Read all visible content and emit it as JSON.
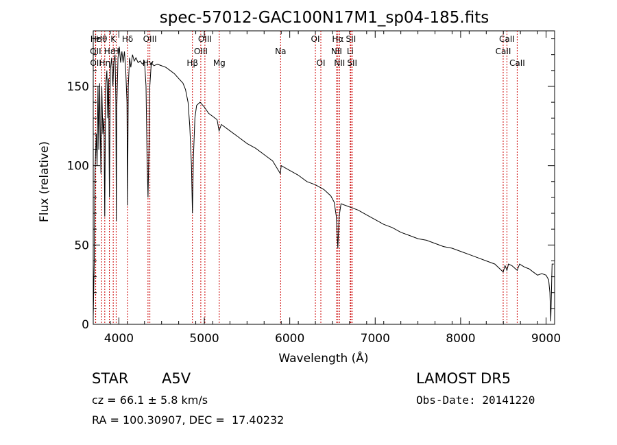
{
  "chart_data": {
    "type": "line",
    "title": "spec-57012-GAC100N17M1_sp04-185.fits",
    "xlabel": "Wavelength (Å)",
    "ylabel": "Flux (relative)",
    "xlim": [
      3700,
      9100
    ],
    "ylim": [
      0,
      185
    ],
    "x_ticks": [
      4000,
      5000,
      6000,
      7000,
      8000,
      9000
    ],
    "y_ticks": [
      0,
      50,
      100,
      150
    ],
    "grid": false,
    "line_color": "#000000",
    "marker_color": "#cc0000",
    "series": [
      {
        "points": [
          [
            3700,
            5
          ],
          [
            3712,
            40
          ],
          [
            3720,
            95
          ],
          [
            3735,
            120
          ],
          [
            3745,
            100
          ],
          [
            3755,
            150
          ],
          [
            3765,
            110
          ],
          [
            3775,
            152
          ],
          [
            3790,
            95
          ],
          [
            3800,
            150
          ],
          [
            3812,
            120
          ],
          [
            3825,
            130
          ],
          [
            3835,
            68
          ],
          [
            3845,
            150
          ],
          [
            3860,
            160
          ],
          [
            3870,
            130
          ],
          [
            3880,
            155
          ],
          [
            3889,
            80
          ],
          [
            3900,
            160
          ],
          [
            3915,
            168
          ],
          [
            3930,
            150
          ],
          [
            3940,
            165
          ],
          [
            3955,
            170
          ],
          [
            3965,
            140
          ],
          [
            3970,
            65
          ],
          [
            3975,
            135
          ],
          [
            3990,
            168
          ],
          [
            4005,
            175
          ],
          [
            4020,
            165
          ],
          [
            4035,
            172
          ],
          [
            4050,
            165
          ],
          [
            4065,
            172
          ],
          [
            4080,
            160
          ],
          [
            4095,
            140
          ],
          [
            4102,
            75
          ],
          [
            4110,
            150
          ],
          [
            4125,
            168
          ],
          [
            4140,
            162
          ],
          [
            4160,
            170
          ],
          [
            4180,
            166
          ],
          [
            4200,
            168
          ],
          [
            4225,
            165
          ],
          [
            4250,
            166
          ],
          [
            4275,
            164
          ],
          [
            4300,
            166
          ],
          [
            4318,
            150
          ],
          [
            4330,
            105
          ],
          [
            4341,
            80
          ],
          [
            4352,
            110
          ],
          [
            4362,
            150
          ],
          [
            4380,
            165
          ],
          [
            4410,
            163
          ],
          [
            4450,
            164
          ],
          [
            4500,
            163
          ],
          [
            4550,
            162
          ],
          [
            4600,
            160
          ],
          [
            4650,
            158
          ],
          [
            4700,
            155
          ],
          [
            4750,
            152
          ],
          [
            4780,
            148
          ],
          [
            4810,
            140
          ],
          [
            4830,
            125
          ],
          [
            4850,
            100
          ],
          [
            4861,
            70
          ],
          [
            4872,
            105
          ],
          [
            4890,
            130
          ],
          [
            4910,
            138
          ],
          [
            4950,
            140
          ],
          [
            5000,
            137
          ],
          [
            5050,
            133
          ],
          [
            5100,
            131
          ],
          [
            5150,
            129
          ],
          [
            5172,
            122
          ],
          [
            5200,
            126
          ],
          [
            5300,
            122
          ],
          [
            5400,
            118
          ],
          [
            5500,
            114
          ],
          [
            5600,
            111
          ],
          [
            5700,
            107
          ],
          [
            5800,
            103
          ],
          [
            5890,
            95
          ],
          [
            5900,
            100
          ],
          [
            6000,
            97
          ],
          [
            6100,
            94
          ],
          [
            6200,
            90
          ],
          [
            6300,
            88
          ],
          [
            6400,
            85
          ],
          [
            6480,
            81
          ],
          [
            6520,
            77
          ],
          [
            6545,
            68
          ],
          [
            6563,
            48
          ],
          [
            6578,
            68
          ],
          [
            6600,
            76
          ],
          [
            6700,
            74
          ],
          [
            6800,
            72
          ],
          [
            6900,
            69
          ],
          [
            7000,
            66
          ],
          [
            7100,
            63
          ],
          [
            7200,
            61
          ],
          [
            7300,
            58
          ],
          [
            7400,
            56
          ],
          [
            7500,
            54
          ],
          [
            7600,
            53
          ],
          [
            7700,
            51
          ],
          [
            7800,
            49
          ],
          [
            7900,
            48
          ],
          [
            8000,
            46
          ],
          [
            8100,
            44
          ],
          [
            8200,
            42
          ],
          [
            8300,
            40
          ],
          [
            8400,
            38
          ],
          [
            8498,
            33
          ],
          [
            8520,
            37
          ],
          [
            8542,
            34
          ],
          [
            8560,
            38
          ],
          [
            8600,
            37
          ],
          [
            8662,
            34
          ],
          [
            8690,
            38
          ],
          [
            8750,
            36
          ],
          [
            8800,
            35
          ],
          [
            8850,
            33
          ],
          [
            8900,
            31
          ],
          [
            8950,
            32
          ],
          [
            9000,
            31
          ],
          [
            9030,
            28
          ],
          [
            9045,
            20
          ],
          [
            9055,
            2
          ],
          [
            9070,
            38
          ],
          [
            9090,
            38
          ]
        ]
      }
    ],
    "line_markers": [
      {
        "label": "Hε",
        "wavelength": 3728,
        "row": 1
      },
      {
        "label": "OII",
        "wavelength": 3727,
        "row": 2
      },
      {
        "label": "OII",
        "wavelength": 3729,
        "row": 3
      },
      {
        "label": "Hθ",
        "wavelength": 3798,
        "row": 1
      },
      {
        "label": "Hη",
        "wavelength": 3835,
        "row": 3
      },
      {
        "label": "Hε",
        "wavelength": 3889,
        "row": 2
      },
      {
        "label": "K",
        "wavelength": 3934,
        "row": 1
      },
      {
        "label": "H",
        "wavelength": 3968,
        "row": 2
      },
      {
        "label": "Hδ",
        "wavelength": 4102,
        "row": 1
      },
      {
        "label": "Hγ",
        "wavelength": 4341,
        "row": 3
      },
      {
        "label": "OIII",
        "wavelength": 4363,
        "row": 1
      },
      {
        "label": "Hβ",
        "wavelength": 4861,
        "row": 3
      },
      {
        "label": "OIII",
        "wavelength": 4959,
        "row": 2
      },
      {
        "label": "OIII",
        "wavelength": 5007,
        "row": 1
      },
      {
        "label": "Mg",
        "wavelength": 5175,
        "row": 3
      },
      {
        "label": "Na",
        "wavelength": 5893,
        "row": 2
      },
      {
        "label": "OI",
        "wavelength": 6300,
        "row": 1
      },
      {
        "label": "OI",
        "wavelength": 6364,
        "row": 3
      },
      {
        "label": "NII",
        "wavelength": 6548,
        "row": 2
      },
      {
        "label": "Hα",
        "wavelength": 6563,
        "row": 1
      },
      {
        "label": "NII",
        "wavelength": 6583,
        "row": 3
      },
      {
        "label": "Li",
        "wavelength": 6708,
        "row": 2
      },
      {
        "label": "SII",
        "wavelength": 6716,
        "row": 1
      },
      {
        "label": "SII",
        "wavelength": 6731,
        "row": 3
      },
      {
        "label": "CaII",
        "wavelength": 8498,
        "row": 2
      },
      {
        "label": "CaII",
        "wavelength": 8542,
        "row": 1
      },
      {
        "label": "CaII",
        "wavelength": 8662,
        "row": 3
      }
    ]
  },
  "info": {
    "object_class": "STAR",
    "subclass": "A5V",
    "survey": "LAMOST DR5",
    "cz": "cz = 66.1 ± 5.8 km/s",
    "obs_date": "Obs-Date: 20141220",
    "coords": "RA = 100.30907, DEC =  17.40232"
  }
}
